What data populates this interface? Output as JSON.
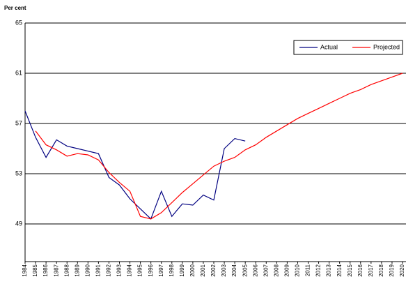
{
  "chart_data": {
    "type": "line",
    "y_label": "Per cent",
    "categories": [
      "1984",
      "1985",
      "1986",
      "1987",
      "1988",
      "1989",
      "1990",
      "1991",
      "1992",
      "1993",
      "1994",
      "1995",
      "1996",
      "1997",
      "1998",
      "1999",
      "2000",
      "2001",
      "2002",
      "2003",
      "2004",
      "2005",
      "2006",
      "2007",
      "2008",
      "2009",
      "2010",
      "2011",
      "2012",
      "2013",
      "2014",
      "2015",
      "2016",
      "2017",
      "2018",
      "2019",
      "2020"
    ],
    "series": [
      {
        "name": "Actual",
        "color": "#000080",
        "values": [
          58.0,
          55.9,
          54.3,
          55.7,
          55.2,
          55.0,
          54.8,
          54.6,
          52.7,
          52.1,
          51.0,
          50.2,
          49.4,
          51.6,
          49.6,
          50.6,
          50.5,
          51.3,
          50.9,
          55.0,
          55.8,
          55.6,
          null,
          null,
          null,
          null,
          null,
          null,
          null,
          null,
          null,
          null,
          null,
          null,
          null,
          null,
          null
        ]
      },
      {
        "name": "Projected",
        "color": "#ff0000",
        "values": [
          null,
          56.4,
          55.3,
          54.9,
          54.4,
          54.6,
          54.5,
          54.1,
          53.1,
          52.3,
          51.6,
          49.6,
          49.4,
          49.9,
          50.7,
          51.5,
          52.2,
          52.9,
          53.6,
          54.0,
          54.3,
          54.9,
          55.3,
          55.9,
          56.4,
          56.9,
          57.4,
          57.8,
          58.2,
          58.6,
          59.0,
          59.4,
          59.7,
          60.1,
          60.4,
          60.7,
          61.0
        ]
      }
    ],
    "ylim": [
      46,
      65
    ],
    "yticks": [
      49,
      53,
      57,
      61,
      65
    ],
    "grid": true,
    "legend": "top-right"
  }
}
